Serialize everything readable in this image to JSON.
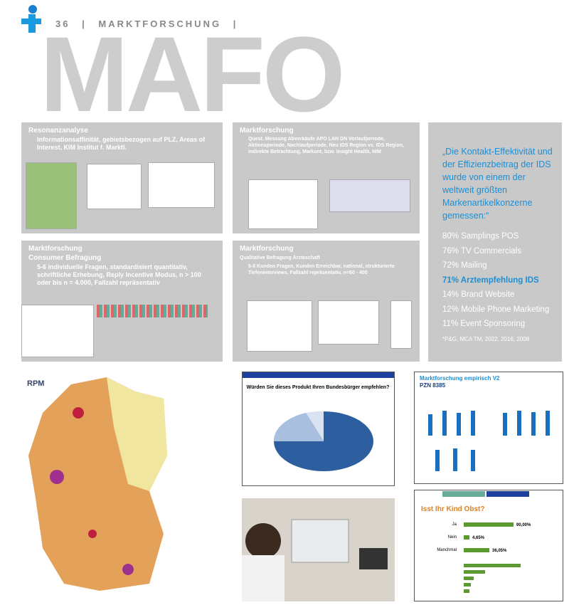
{
  "header": {
    "page_number": "36",
    "section": "MARKTFORSCHUNG",
    "title": "MAFO"
  },
  "panels": [
    {
      "heading": "Resonanzanalyse",
      "body": "Informationsaffinität, gebietsbezogen auf PLZ, Areas of Interest, KIM Institut f. Marktl."
    },
    {
      "heading": "Marktforschung",
      "body": "Quest. Messung Abverkäufe APO LAN DN Vorlaufperiode, Aktionsperiode, Nachlaufperiode, Neu IDS Region vs. IDS Region, Indirekte Betrachtung, Markant, bzw. Insight Health, NIM"
    },
    {
      "heading": "Marktforschung",
      "subheading": "Consumer Befragung",
      "body": "5-6 individuelle Fragen, standardisiert quantitativ, schriftliche Erhebung, Reply Incentive Modus, n > 100 oder bis n = 4.000, Fallzahl repräsentativ"
    },
    {
      "heading": "Marktforschung",
      "subheading": "Qualitative Befragung Ärzteschaft",
      "body": "5-8 Kunden Fragen, Kunden Erreichbar, national, strukturierte Tiefeninterviews, Fallzahl repräsentativ, n=60 - 400"
    }
  ],
  "quote": {
    "text": "„Die Kontakt-Effektivität und der Effizienzbeitrag der IDS wurde von einem der weltweit größten Markenartikelkonzerne gemessen:“",
    "items": [
      "80% Samplings POS",
      "76% TV Commercials",
      "72% Mailing",
      "71% Arztempfehlung IDS",
      "14% Brand Website",
      "12% Mobile Phone Marketing",
      "11% Event Sponsoring"
    ],
    "footnote": "*P&G, MCA TM, 2022, 2016, 2008"
  },
  "images": {
    "map": {
      "logo": "RPM"
    },
    "pie": {
      "question": "Würden Sie dieses Produkt Ihren Bundesbürger empfehlen?"
    },
    "chart_top": {
      "title": "Marktforschung empirisch V2",
      "subtitle": "PZN 8385"
    },
    "chart_bottom": {
      "question": "Isst Ihr Kind Obst?",
      "rows": [
        [
          "Ja",
          "90,00%"
        ],
        [
          "Nein",
          "4,65%"
        ],
        [
          "Manchmal",
          "36,05%"
        ]
      ]
    }
  }
}
